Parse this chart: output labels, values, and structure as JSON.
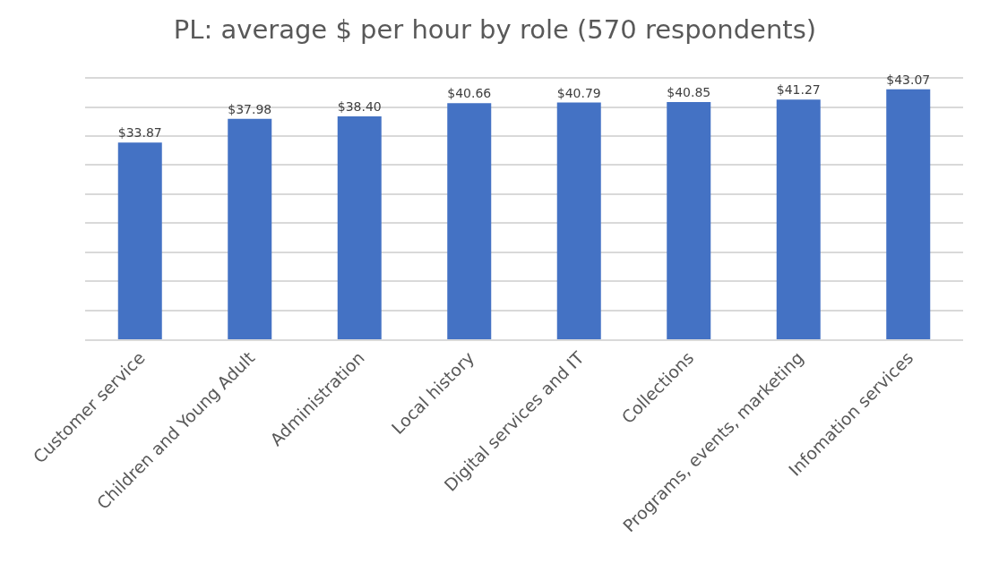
{
  "chart_data": {
    "type": "bar",
    "title": "PL: average $ per hour by role (570 respondents)",
    "categories": [
      "Customer service",
      "Children and Young Adult",
      "Administration",
      "Local history",
      "Digital services and IT",
      "Collections",
      "Programs, events, marketing",
      "Infomation services"
    ],
    "values": [
      33.87,
      37.98,
      38.4,
      40.66,
      40.79,
      40.85,
      41.27,
      43.07
    ],
    "value_labels": [
      "$33.87",
      "$37.98",
      "$38.40",
      "$40.66",
      "$40.79",
      "$40.85",
      "$41.27",
      "$43.07"
    ],
    "color": "#4472c4",
    "tick_labels": "x",
    "grid": "y"
  }
}
